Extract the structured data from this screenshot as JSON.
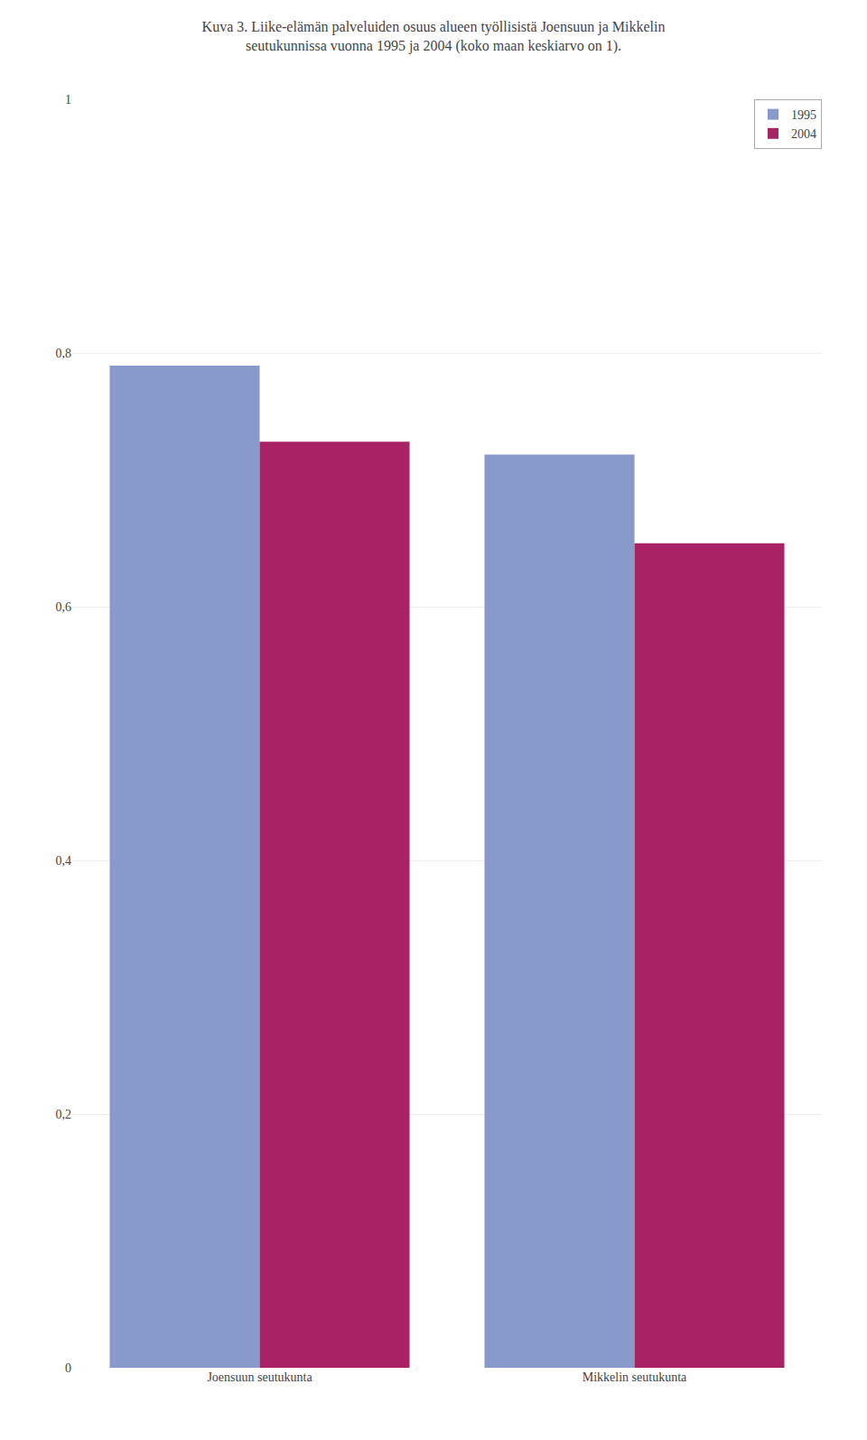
{
  "chart_data": {
    "type": "bar",
    "title": "Kuva 3. Liike-elämän palveluiden osuus alueen työllisistä Joensuun ja Mikkelin seutukunnissa vuonna 1995 ja 2004 (koko maan keskiarvo on 1).",
    "categories": [
      "Joensuun seutukunta",
      "Mikkelin seutukunta"
    ],
    "series": [
      {
        "name": "1995",
        "color": "#8899CC",
        "values": [
          0.79,
          0.72
        ]
      },
      {
        "name": "2004",
        "color": "#AA2266",
        "values": [
          0.73,
          0.65
        ]
      }
    ],
    "ylim": [
      0,
      1.0
    ],
    "yticks": [
      0,
      {
        "value": 0.2,
        "label": "0,2"
      },
      {
        "value": 0.4,
        "label": "0,4"
      },
      {
        "value": 0.6,
        "label": "0,6"
      },
      {
        "value": 0.8,
        "label": "0,8"
      },
      1
    ],
    "grid": true,
    "legend": "upper right"
  }
}
